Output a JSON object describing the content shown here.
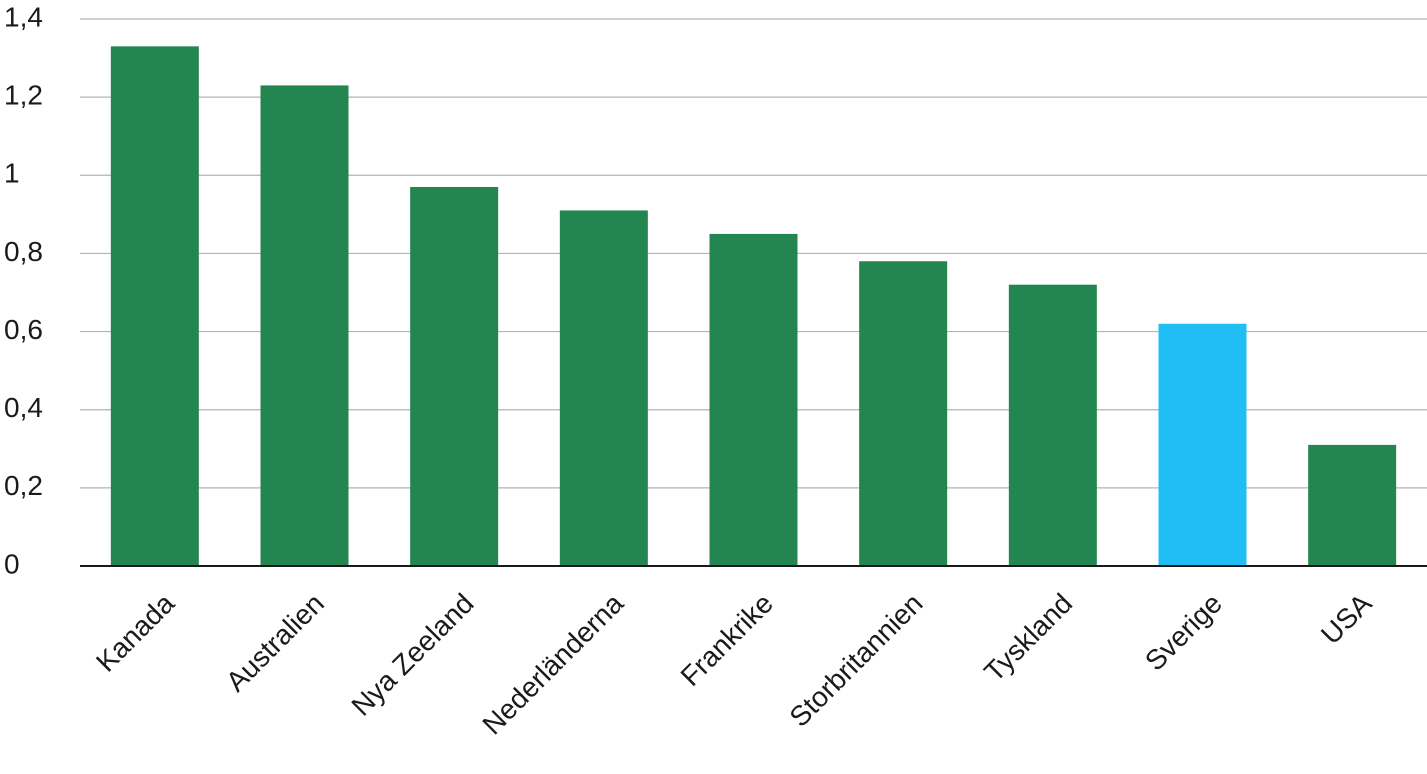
{
  "chart_data": {
    "type": "bar",
    "categories": [
      "Kanada",
      "Australien",
      "Nya Zeeland",
      "Nederländerna",
      "Frankrike",
      "Storbritannien",
      "Tyskland",
      "Sverige",
      "USA"
    ],
    "values": [
      1.33,
      1.23,
      0.97,
      0.91,
      0.85,
      0.78,
      0.72,
      0.62,
      0.31
    ],
    "colors": [
      "#23854f",
      "#23854f",
      "#23854f",
      "#23854f",
      "#23854f",
      "#23854f",
      "#23854f",
      "#21bdf5",
      "#23854f"
    ],
    "ylim": [
      0,
      1.4
    ],
    "yticks": [
      0,
      {
        "value": 0.2,
        "label": "0,2"
      },
      {
        "value": 0.4,
        "label": "0,4"
      },
      {
        "value": 0.6,
        "label": "0,6"
      },
      {
        "value": 0.8,
        "label": "0,8"
      },
      1,
      {
        "value": 1.2,
        "label": "1,2"
      },
      {
        "value": 1.4,
        "label": "1,4"
      }
    ],
    "grid": true
  }
}
